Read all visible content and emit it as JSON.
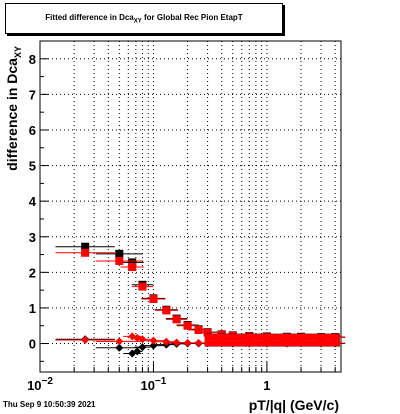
{
  "title": {
    "main": "Fitted difference in Dca",
    "sub": "XY",
    "rest": " for Global Rec Pion EtapT"
  },
  "timestamp": "Thu Sep  9 10:50:39 2021",
  "chart_data": {
    "type": "scatter",
    "xlabel": "pT/|q| (GeV/c)",
    "ylabel": "difference in Dca",
    "ylabel_sub": "XY",
    "xscale": "log",
    "xlim": [
      0.01,
      4.5
    ],
    "ylim": [
      -0.8,
      8.5
    ],
    "grid": true,
    "y_ticks": [
      "0",
      "1",
      "2",
      "3",
      "4",
      "5",
      "6",
      "7",
      "8"
    ],
    "x_ticks": [
      {
        "label": "10",
        "sup": "−2"
      },
      {
        "label": "10",
        "sup": "−1"
      },
      {
        "label": "1",
        "sup": ""
      }
    ],
    "series": [
      {
        "color": "#000000",
        "x": [
          0.025,
          0.05,
          0.065,
          0.08,
          0.1,
          0.13,
          0.16,
          0.2,
          0.25,
          0.3,
          0.4,
          0.5,
          0.7,
          1.0,
          1.5,
          2.0,
          3.0,
          4.0
        ],
        "y": [
          2.72,
          2.52,
          2.28,
          1.65,
          1.27,
          0.95,
          0.7,
          0.52,
          0.4,
          0.32,
          0.26,
          0.23,
          0.21,
          0.2,
          0.19,
          0.19,
          0.18,
          0.18
        ]
      },
      {
        "color": "#ff0000",
        "x": [
          0.025,
          0.05,
          0.065,
          0.08,
          0.1,
          0.13,
          0.16,
          0.2,
          0.25,
          0.3,
          0.4,
          0.5,
          0.7,
          1.0,
          1.5,
          2.0,
          3.0,
          4.0
        ],
        "y": [
          2.55,
          2.32,
          2.15,
          1.6,
          1.25,
          0.93,
          0.68,
          0.5,
          0.38,
          0.31,
          0.25,
          0.22,
          0.2,
          0.19,
          0.18,
          0.18,
          0.17,
          0.17
        ]
      },
      {
        "color": "#000000",
        "x": [
          0.025,
          0.05,
          0.065,
          0.072,
          0.08,
          0.1,
          0.13,
          0.16,
          0.2,
          0.25,
          0.3,
          0.4,
          0.5,
          0.7,
          1.0,
          1.5,
          2.0,
          3.0,
          4.0
        ],
        "y": [
          0.12,
          -0.12,
          -0.28,
          -0.22,
          -0.1,
          -0.06,
          -0.03,
          -0.01,
          0.0,
          0.0,
          0.01,
          0.01,
          0.0,
          0.0,
          0.0,
          0.0,
          0.01,
          0.0,
          0.0
        ]
      },
      {
        "color": "#ff0000",
        "x": [
          0.025,
          0.05,
          0.065,
          0.072,
          0.08,
          0.1,
          0.13,
          0.16,
          0.2,
          0.25,
          0.3,
          0.4,
          0.5,
          0.7,
          1.0,
          1.5,
          2.0,
          3.0,
          4.0
        ],
        "y": [
          0.1,
          0.06,
          0.2,
          0.16,
          0.12,
          0.08,
          0.05,
          0.03,
          0.02,
          0.02,
          0.01,
          0.01,
          0.01,
          0.0,
          0.0,
          0.0,
          0.01,
          0.0,
          0.01
        ]
      }
    ]
  }
}
